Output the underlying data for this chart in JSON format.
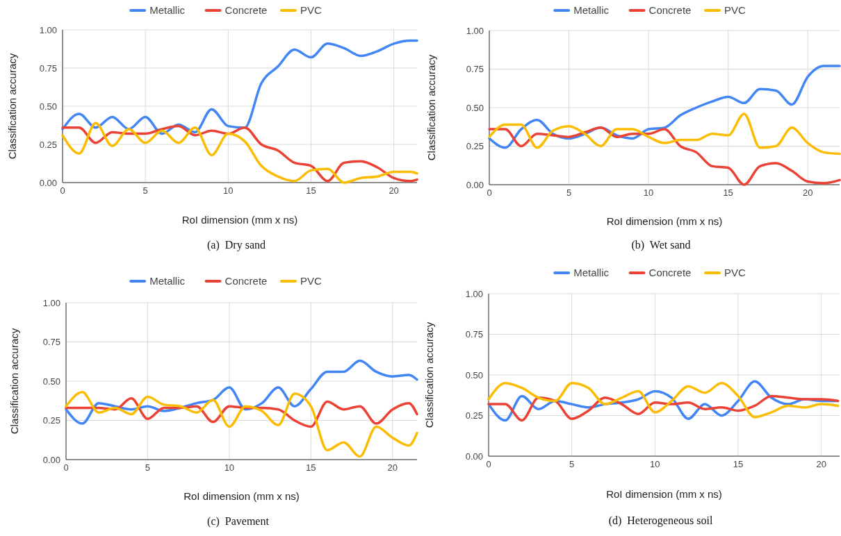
{
  "chart_data": [
    {
      "type": "line",
      "xlabel": "RoI dimension (mm x ns)",
      "ylabel": "Classification accuracy",
      "annotations": [
        "(a)  Dry sand"
      ],
      "x": [
        0,
        1,
        2,
        3,
        4,
        5,
        6,
        7,
        8,
        9,
        10,
        11,
        12,
        13,
        14,
        15,
        16,
        17,
        18,
        19,
        20,
        21,
        21.4
      ],
      "xlim": [
        0,
        21.4
      ],
      "xticks": [
        0,
        5,
        10,
        15,
        20
      ],
      "ylim": [
        0,
        1
      ],
      "yticks": [
        {
          "value": 0,
          "label": "0.00"
        },
        {
          "value": 0.25,
          "label": "0.25"
        },
        {
          "value": 0.5,
          "label": "0.50"
        },
        {
          "value": 0.75,
          "label": "0.75"
        },
        {
          "value": 1,
          "label": "1.00"
        }
      ],
      "grid": true,
      "legend": "top",
      "series": [
        {
          "name": "Metallic",
          "color": "#4285f4",
          "values": [
            0.35,
            0.45,
            0.36,
            0.43,
            0.35,
            0.43,
            0.32,
            0.38,
            0.33,
            0.48,
            0.37,
            0.36,
            0.65,
            0.76,
            0.87,
            0.82,
            0.91,
            0.88,
            0.83,
            0.86,
            0.91,
            0.93,
            0.93
          ]
        },
        {
          "name": "Concrete",
          "color": "#ea4335",
          "values": [
            0.36,
            0.36,
            0.26,
            0.33,
            0.32,
            0.32,
            0.35,
            0.37,
            0.31,
            0.34,
            0.32,
            0.36,
            0.25,
            0.21,
            0.13,
            0.11,
            0.01,
            0.13,
            0.14,
            0.1,
            0.03,
            0.01,
            0.02
          ]
        },
        {
          "name": "PVC",
          "color": "#fbbc04",
          "values": [
            0.31,
            0.19,
            0.39,
            0.24,
            0.35,
            0.26,
            0.34,
            0.26,
            0.36,
            0.18,
            0.32,
            0.27,
            0.11,
            0.04,
            0.01,
            0.08,
            0.09,
            0.0,
            0.03,
            0.04,
            0.07,
            0.07,
            0.06
          ]
        }
      ]
    },
    {
      "type": "line",
      "xlabel": "RoI dimension (mm x ns)",
      "ylabel": "Classification accuracy",
      "annotations": [
        "(b)  Wet sand"
      ],
      "x": [
        0,
        1,
        2,
        3,
        4,
        5,
        6,
        7,
        8,
        9,
        10,
        11,
        12,
        13,
        14,
        15,
        16,
        17,
        18,
        19,
        20,
        21,
        22
      ],
      "xlim": [
        0,
        22
      ],
      "xticks": [
        0,
        5,
        10,
        15,
        20
      ],
      "ylim": [
        0,
        1
      ],
      "yticks": [
        {
          "value": 0,
          "label": "0.00"
        },
        {
          "value": 0.25,
          "label": "0.25"
        },
        {
          "value": 0.5,
          "label": "0.50"
        },
        {
          "value": 0.75,
          "label": "0.75"
        },
        {
          "value": 1,
          "label": "1.00"
        }
      ],
      "grid": true,
      "legend": "top",
      "series": [
        {
          "name": "Metallic",
          "color": "#4285f4",
          "values": [
            0.3,
            0.24,
            0.36,
            0.42,
            0.33,
            0.3,
            0.33,
            0.37,
            0.32,
            0.3,
            0.36,
            0.37,
            0.45,
            0.5,
            0.54,
            0.57,
            0.53,
            0.62,
            0.61,
            0.52,
            0.7,
            0.77,
            0.77
          ]
        },
        {
          "name": "Concrete",
          "color": "#ea4335",
          "values": [
            0.36,
            0.36,
            0.25,
            0.33,
            0.32,
            0.31,
            0.34,
            0.37,
            0.31,
            0.33,
            0.33,
            0.36,
            0.25,
            0.21,
            0.12,
            0.11,
            0.0,
            0.12,
            0.14,
            0.09,
            0.02,
            0.01,
            0.03
          ]
        },
        {
          "name": "PVC",
          "color": "#fbbc04",
          "values": [
            0.31,
            0.39,
            0.39,
            0.24,
            0.35,
            0.38,
            0.33,
            0.25,
            0.36,
            0.36,
            0.31,
            0.27,
            0.29,
            0.29,
            0.33,
            0.32,
            0.46,
            0.24,
            0.25,
            0.37,
            0.27,
            0.21,
            0.2
          ]
        }
      ]
    },
    {
      "type": "line",
      "xlabel": "RoI dimension (mm x ns)",
      "ylabel": "Classification accuracy",
      "annotations": [
        "(c)  Pavement"
      ],
      "x": [
        0,
        1,
        2,
        3,
        4,
        5,
        6,
        7,
        8,
        9,
        10,
        11,
        12,
        13,
        14,
        15,
        16,
        17,
        18,
        19,
        20,
        21,
        21.5
      ],
      "xlim": [
        0,
        21.5
      ],
      "xticks": [
        0,
        5,
        10,
        15,
        20
      ],
      "ylim": [
        0,
        1
      ],
      "yticks": [
        {
          "value": 0,
          "label": "0.00"
        },
        {
          "value": 0.25,
          "label": "0.25"
        },
        {
          "value": 0.5,
          "label": "0.50"
        },
        {
          "value": 0.75,
          "label": "0.75"
        },
        {
          "value": 1,
          "label": "1.00"
        }
      ],
      "grid": true,
      "legend": "top",
      "series": [
        {
          "name": "Metallic",
          "color": "#4285f4",
          "values": [
            0.32,
            0.23,
            0.36,
            0.34,
            0.32,
            0.34,
            0.31,
            0.33,
            0.36,
            0.38,
            0.46,
            0.32,
            0.36,
            0.46,
            0.34,
            0.45,
            0.56,
            0.56,
            0.63,
            0.56,
            0.53,
            0.54,
            0.51
          ]
        },
        {
          "name": "Concrete",
          "color": "#ea4335",
          "values": [
            0.33,
            0.33,
            0.33,
            0.32,
            0.39,
            0.26,
            0.33,
            0.33,
            0.34,
            0.24,
            0.34,
            0.33,
            0.33,
            0.32,
            0.25,
            0.21,
            0.37,
            0.32,
            0.34,
            0.23,
            0.32,
            0.36,
            0.29
          ]
        },
        {
          "name": "PVC",
          "color": "#fbbc04",
          "values": [
            0.34,
            0.43,
            0.3,
            0.33,
            0.29,
            0.4,
            0.35,
            0.34,
            0.3,
            0.38,
            0.21,
            0.34,
            0.31,
            0.22,
            0.42,
            0.34,
            0.06,
            0.11,
            0.02,
            0.21,
            0.14,
            0.09,
            0.17
          ]
        }
      ]
    },
    {
      "type": "line",
      "xlabel": "RoI dimension (mm x ns)",
      "ylabel": "Classification accuracy",
      "annotations": [
        "(d)  Heterogeneous soil"
      ],
      "x": [
        0,
        1,
        2,
        3,
        4,
        5,
        6,
        7,
        8,
        9,
        10,
        11,
        12,
        13,
        14,
        15,
        16,
        17,
        18,
        19,
        20,
        21
      ],
      "xlim": [
        0,
        21.1
      ],
      "xticks": [
        0,
        5,
        10,
        15,
        20
      ],
      "ylim": [
        0,
        1
      ],
      "yticks": [
        {
          "value": 0,
          "label": "0.00"
        },
        {
          "value": 0.25,
          "label": "0.25"
        },
        {
          "value": 0.5,
          "label": "0.50"
        },
        {
          "value": 0.75,
          "label": "0.75"
        },
        {
          "value": 1,
          "label": "1.00"
        }
      ],
      "grid": true,
      "legend": "top",
      "series": [
        {
          "name": "Metallic",
          "color": "#4285f4",
          "values": [
            0.32,
            0.22,
            0.37,
            0.29,
            0.34,
            0.32,
            0.3,
            0.32,
            0.33,
            0.35,
            0.4,
            0.36,
            0.23,
            0.32,
            0.25,
            0.34,
            0.46,
            0.36,
            0.32,
            0.35,
            0.34,
            0.34
          ]
        },
        {
          "name": "Concrete",
          "color": "#ea4335",
          "values": [
            0.32,
            0.32,
            0.22,
            0.36,
            0.34,
            0.23,
            0.28,
            0.36,
            0.32,
            0.26,
            0.33,
            0.32,
            0.33,
            0.29,
            0.3,
            0.28,
            0.31,
            0.37,
            0.36,
            0.35,
            0.35,
            0.34
          ]
        },
        {
          "name": "PVC",
          "color": "#fbbc04",
          "values": [
            0.35,
            0.45,
            0.42,
            0.36,
            0.34,
            0.45,
            0.42,
            0.32,
            0.36,
            0.4,
            0.27,
            0.34,
            0.43,
            0.39,
            0.45,
            0.37,
            0.24,
            0.27,
            0.31,
            0.3,
            0.32,
            0.31
          ]
        }
      ]
    }
  ]
}
